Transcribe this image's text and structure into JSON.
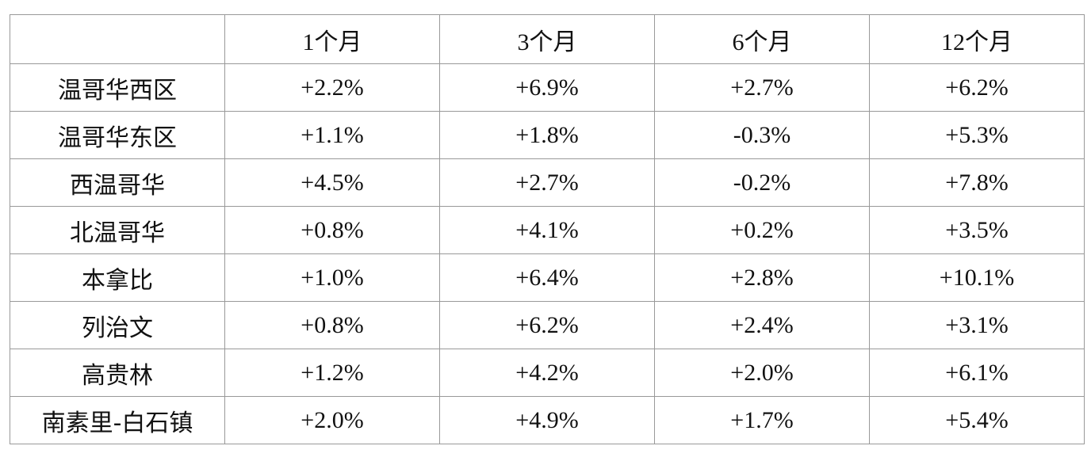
{
  "table": {
    "header": [
      "1个月",
      "3个月",
      "6个月",
      "12个月"
    ],
    "rows": [
      {
        "label": "温哥华西区",
        "values": [
          "+2.2%",
          "+6.9%",
          "+2.7%",
          "+6.2%"
        ]
      },
      {
        "label": "温哥华东区",
        "values": [
          "+1.1%",
          "+1.8%",
          "-0.3%",
          "+5.3%"
        ]
      },
      {
        "label": "西温哥华",
        "values": [
          "+4.5%",
          "+2.7%",
          "-0.2%",
          "+7.8%"
        ]
      },
      {
        "label": "北温哥华",
        "values": [
          "+0.8%",
          "+4.1%",
          "+0.2%",
          "+3.5%"
        ]
      },
      {
        "label": "本拿比",
        "values": [
          "+1.0%",
          "+6.4%",
          "+2.8%",
          "+10.1%"
        ]
      },
      {
        "label": "列治文",
        "values": [
          "+0.8%",
          "+6.2%",
          "+2.4%",
          "+3.1%"
        ]
      },
      {
        "label": "高贵林",
        "values": [
          "+1.2%",
          "+4.2%",
          "+2.0%",
          "+6.1%"
        ]
      },
      {
        "label": "南素里-白石镇",
        "values": [
          "+2.0%",
          "+4.9%",
          "+1.7%",
          "+5.4%"
        ]
      }
    ]
  }
}
